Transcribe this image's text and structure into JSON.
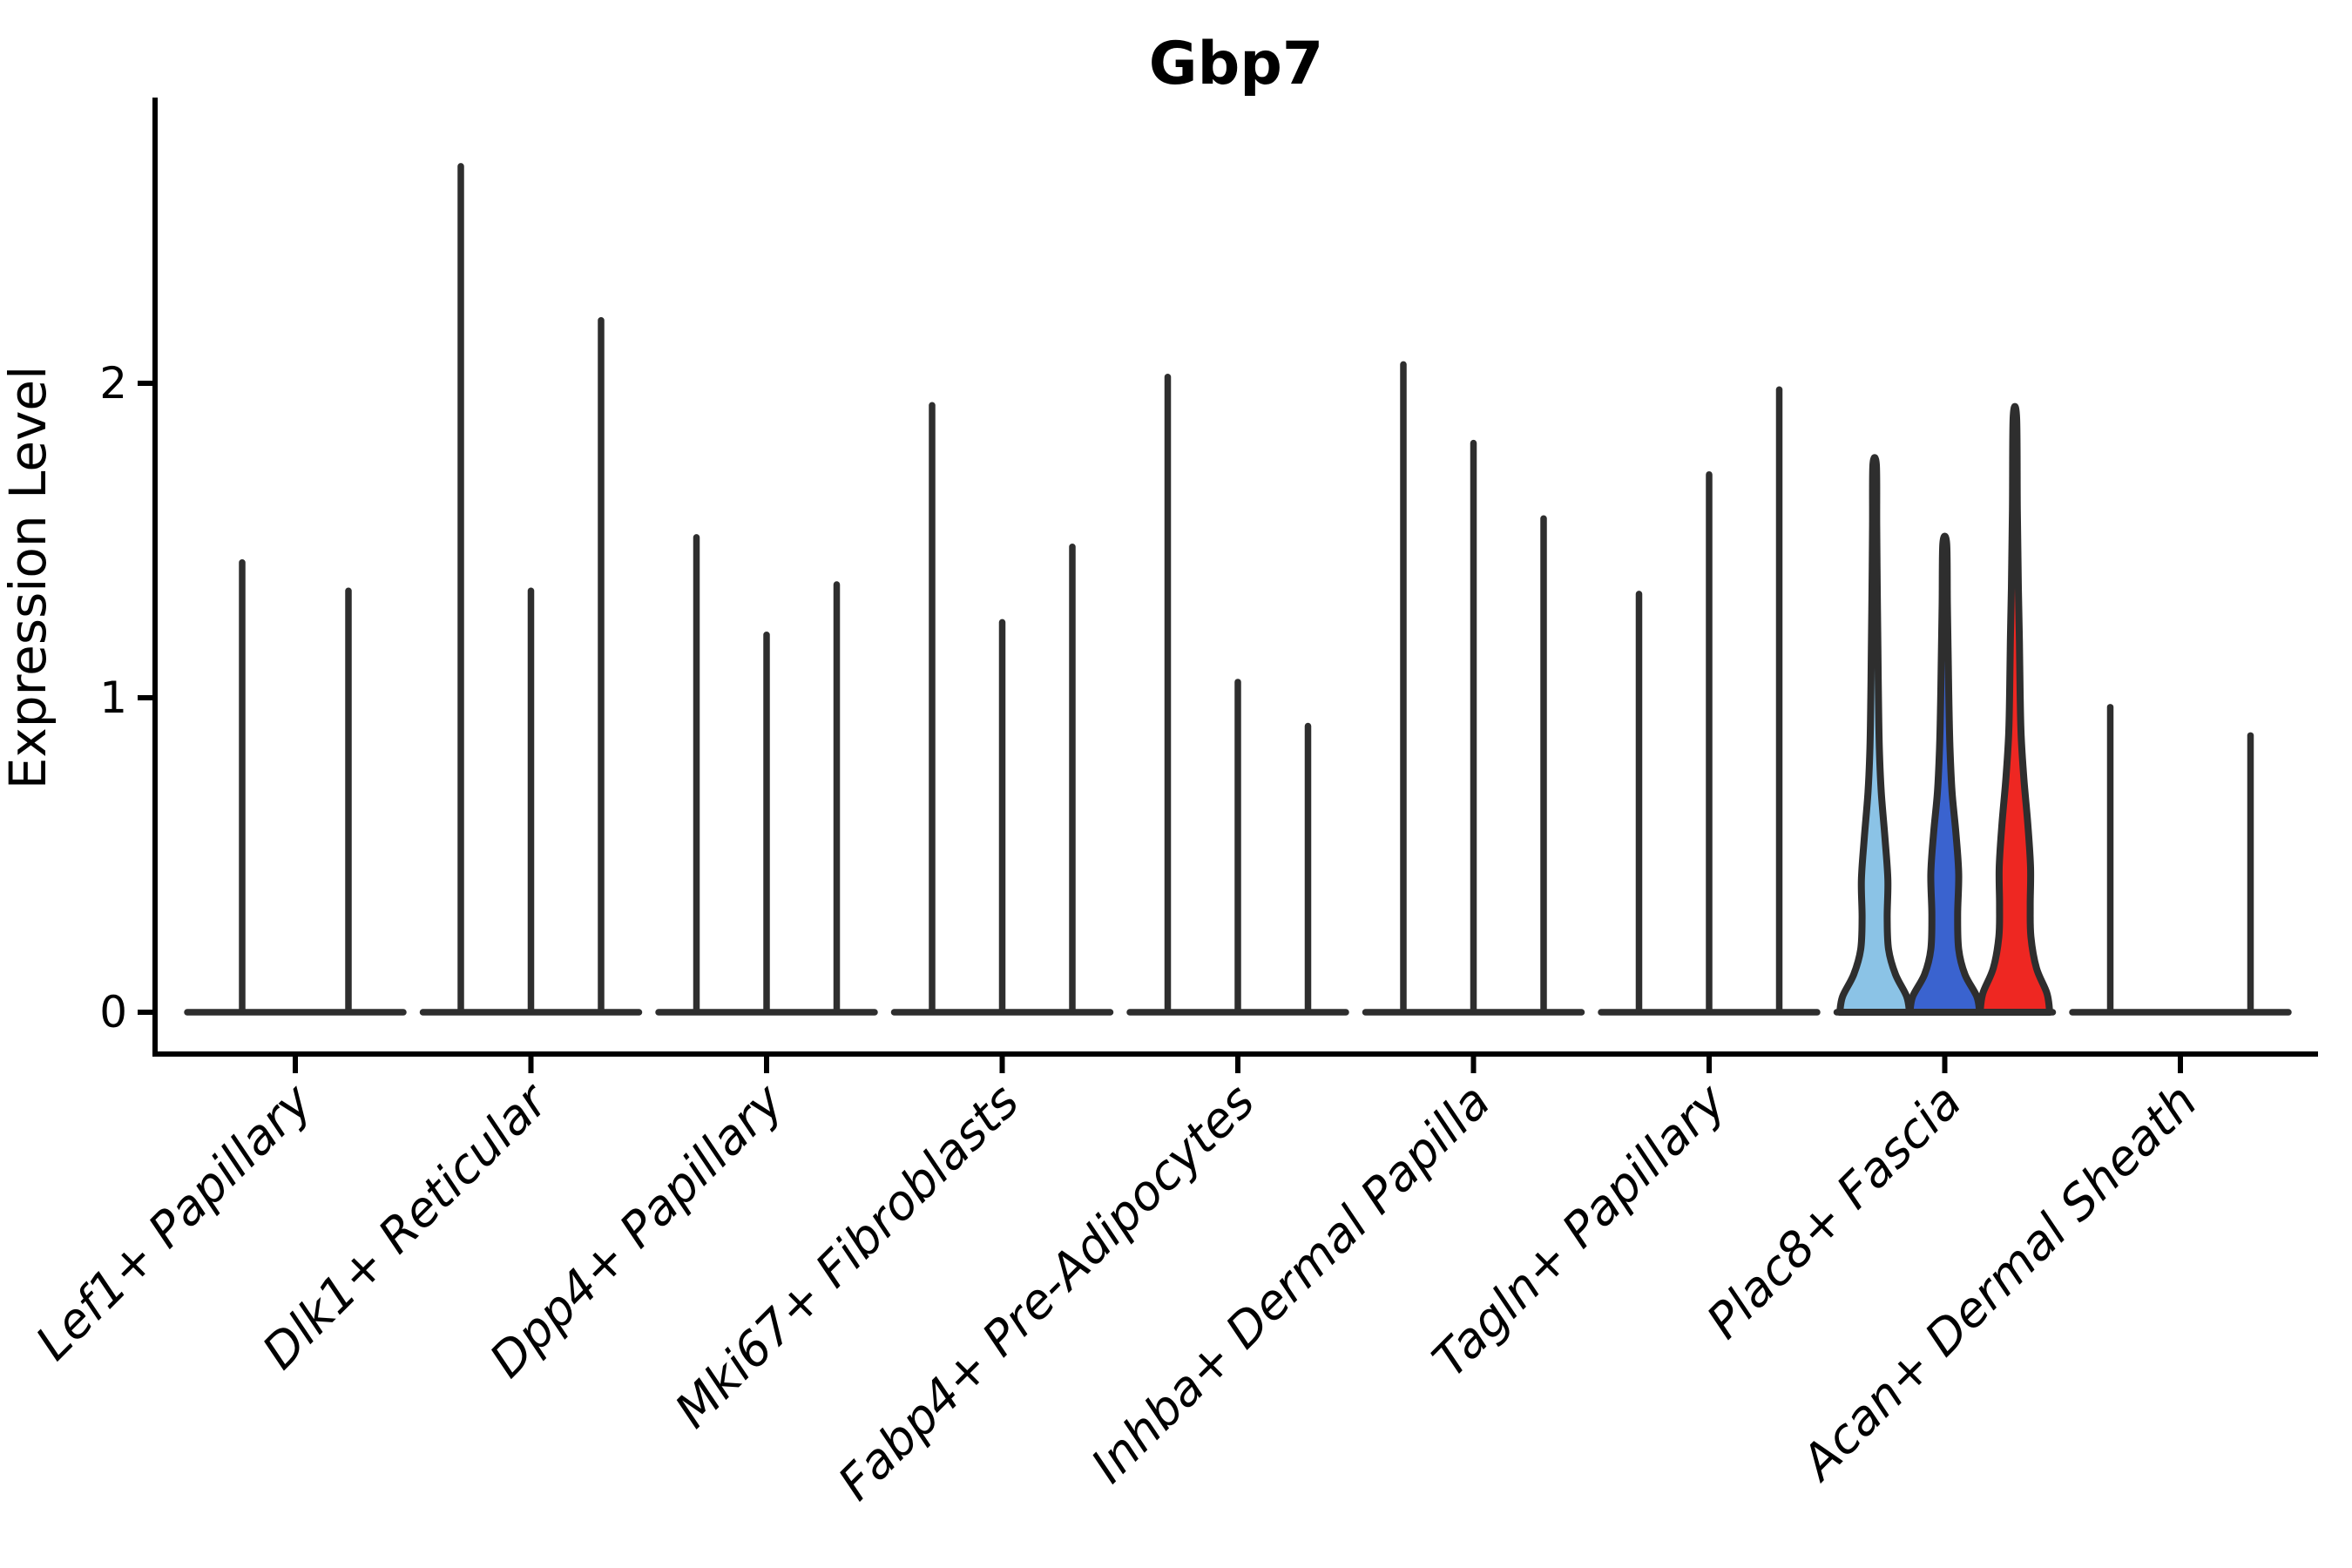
{
  "chart_data": {
    "type": "violin",
    "title": "Gbp7",
    "ylabel": "Expression Level",
    "xlabel": "",
    "ylim": [
      0,
      2.9
    ],
    "yticks": [
      0,
      1,
      2
    ],
    "grid": false,
    "legend": "none",
    "axis_color": "#000000",
    "outline_color": "#2e2e2e",
    "categories": [
      "Lef1+ Papillary",
      "Dlk1+ Reticular",
      "Dpp4+ Papillary",
      "Mki67+ Fibroblasts",
      "Fabp4+ Pre-Adipocytes",
      "Inhba+ Dermal Papilla",
      "Tagln+ Papillary",
      "Plac8+ Fascia",
      "Acan+ Dermal Sheath"
    ],
    "groups": [
      {
        "label": "Lef1+ Papillary",
        "slots": 2,
        "violins": [
          {
            "slot": 0,
            "max": 1.43
          },
          {
            "slot": 1,
            "max": 1.34
          }
        ]
      },
      {
        "label": "Dlk1+ Reticular",
        "slots": 3,
        "violins": [
          {
            "slot": 0,
            "max": 2.69
          },
          {
            "slot": 1,
            "max": 1.34
          },
          {
            "slot": 2,
            "max": 2.2
          }
        ]
      },
      {
        "label": "Dpp4+ Papillary",
        "slots": 3,
        "violins": [
          {
            "slot": 0,
            "max": 1.51
          },
          {
            "slot": 1,
            "max": 1.2
          },
          {
            "slot": 2,
            "max": 1.36
          }
        ]
      },
      {
        "label": "Mki67+ Fibroblasts",
        "slots": 3,
        "violins": [
          {
            "slot": 0,
            "max": 1.93
          },
          {
            "slot": 1,
            "max": 1.24
          },
          {
            "slot": 2,
            "max": 1.48
          }
        ]
      },
      {
        "label": "Fabp4+ Pre-Adipocytes",
        "slots": 3,
        "violins": [
          {
            "slot": 0,
            "max": 2.02
          },
          {
            "slot": 1,
            "max": 1.05
          },
          {
            "slot": 2,
            "max": 0.91
          }
        ]
      },
      {
        "label": "Inhba+ Dermal Papilla",
        "slots": 3,
        "violins": [
          {
            "slot": 0,
            "max": 2.06
          },
          {
            "slot": 1,
            "max": 1.81
          },
          {
            "slot": 2,
            "max": 1.57
          }
        ]
      },
      {
        "label": "Tagln+ Papillary",
        "slots": 3,
        "violins": [
          {
            "slot": 0,
            "max": 1.33
          },
          {
            "slot": 1,
            "max": 1.71
          },
          {
            "slot": 2,
            "max": 1.98
          }
        ]
      },
      {
        "label": "Plac8+ Fascia",
        "slots": 3,
        "violins": [
          {
            "slot": 0,
            "max": 1.74,
            "fill": "#8BC3E6",
            "profile": [
              [
                0,
                1
              ],
              [
                0.05,
                0.92
              ],
              [
                0.12,
                0.6
              ],
              [
                0.2,
                0.4
              ],
              [
                0.3,
                0.36
              ],
              [
                0.42,
                0.38
              ],
              [
                0.55,
                0.3
              ],
              [
                0.7,
                0.19
              ],
              [
                0.84,
                0.135
              ],
              [
                1.0,
                0.11
              ],
              [
                1.15,
                0.095
              ],
              [
                1.35,
                0.075
              ],
              [
                1.55,
                0.06
              ],
              [
                1.74,
                0.05
              ]
            ]
          },
          {
            "slot": 1,
            "max": 1.49,
            "fill": "#3A63CF",
            "profile": [
              [
                0,
                1
              ],
              [
                0.05,
                0.92
              ],
              [
                0.12,
                0.58
              ],
              [
                0.2,
                0.4
              ],
              [
                0.31,
                0.37
              ],
              [
                0.44,
                0.4
              ],
              [
                0.57,
                0.32
              ],
              [
                0.7,
                0.21
              ],
              [
                0.84,
                0.15
              ],
              [
                0.98,
                0.12
              ],
              [
                1.12,
                0.1
              ],
              [
                1.3,
                0.075
              ],
              [
                1.49,
                0.055
              ]
            ]
          },
          {
            "slot": 2,
            "max": 1.89,
            "fill": "#EE2722",
            "profile": [
              [
                0,
                1
              ],
              [
                0.06,
                0.92
              ],
              [
                0.14,
                0.62
              ],
              [
                0.24,
                0.46
              ],
              [
                0.34,
                0.44
              ],
              [
                0.46,
                0.45
              ],
              [
                0.6,
                0.37
              ],
              [
                0.74,
                0.26
              ],
              [
                0.88,
                0.18
              ],
              [
                1.02,
                0.15
              ],
              [
                1.18,
                0.13
              ],
              [
                1.35,
                0.1
              ],
              [
                1.6,
                0.07
              ],
              [
                1.89,
                0.05
              ]
            ]
          }
        ]
      },
      {
        "label": "Acan+ Dermal Sheath",
        "slots": 3,
        "violins": [
          {
            "slot": 0,
            "max": 0.97
          },
          {
            "slot": 2,
            "max": 0.88
          }
        ]
      }
    ]
  }
}
